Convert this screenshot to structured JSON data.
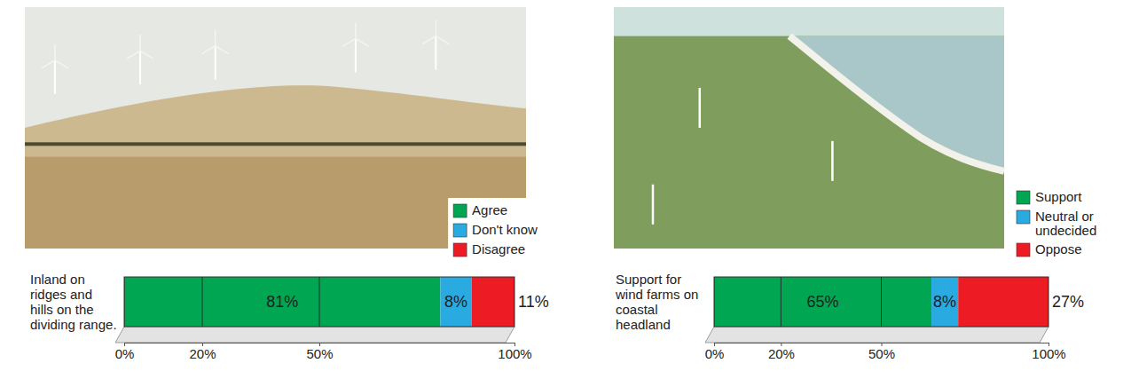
{
  "chart_data": [
    {
      "type": "bar",
      "orientation": "horizontal",
      "stacked": true,
      "categories": [
        "Inland on ridges and hills on the dividing range."
      ],
      "series": [
        {
          "name": "Agree",
          "color": "#00a651",
          "values": [
            81
          ],
          "value_labels": [
            "81%"
          ]
        },
        {
          "name": "Don't know",
          "color": "#29abe2",
          "values": [
            8
          ],
          "value_labels": [
            "8%"
          ]
        },
        {
          "name": "Disagree",
          "color": "#ed1c24",
          "values": [
            11
          ],
          "value_labels": [
            "11%"
          ]
        }
      ],
      "xlim": [
        0,
        100
      ],
      "xticks": [
        {
          "value": 0,
          "label": "0%"
        },
        {
          "value": 20,
          "label": "20%"
        },
        {
          "value": 50,
          "label": "50%"
        },
        {
          "value": 100,
          "label": "100%"
        }
      ],
      "grid": true,
      "data_labels": true,
      "legend": "lower right"
    },
    {
      "type": "bar",
      "orientation": "horizontal",
      "stacked": true,
      "categories": [
        "Support for wind farms on coastal headland"
      ],
      "series": [
        {
          "name": "Support",
          "color": "#00a651",
          "values": [
            65
          ],
          "value_labels": [
            "65%"
          ]
        },
        {
          "name": "Neutral or undecided",
          "color": "#29abe2",
          "values": [
            8
          ],
          "value_labels": [
            "8%"
          ]
        },
        {
          "name": "Oppose",
          "color": "#ed1c24",
          "values": [
            27
          ],
          "value_labels": [
            "27%"
          ]
        }
      ],
      "xlim": [
        0,
        100
      ],
      "xticks": [
        {
          "value": 0,
          "label": "0%"
        },
        {
          "value": 20,
          "label": "20%"
        },
        {
          "value": 50,
          "label": "50%"
        },
        {
          "value": 100,
          "label": "100%"
        }
      ],
      "grid": true,
      "data_labels": true,
      "legend": "lower right"
    }
  ]
}
